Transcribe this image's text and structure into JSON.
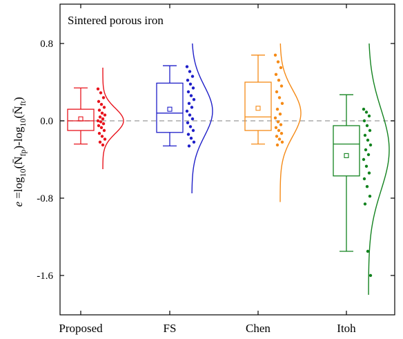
{
  "chart_data": {
    "type": "box",
    "title": "Sintered porous iron",
    "ylabel": "e =log10(N̄fp)-log10(N̄ft)",
    "ylabel_parts": {
      "e": "e",
      "eq": " =log",
      "sub1": "10",
      "lp1": "(",
      "n1": "N̄",
      "sub_fp": "fp",
      "mid": ")-log",
      "sub2": "10",
      "lp2": "(",
      "n2": "N̄",
      "sub_ft": "ft",
      "rp": ")"
    },
    "ylim": [
      -1.9,
      1.15
    ],
    "yticks": [
      0.8,
      0.0,
      -0.8,
      -1.6
    ],
    "ytick_labels": [
      "0.8",
      "0.0",
      "-0.8",
      "-1.6"
    ],
    "reference_line": 0.0,
    "grid": false,
    "categories": [
      "Proposed",
      "FS",
      "Chen",
      "Itoh"
    ],
    "series": [
      {
        "name": "Proposed",
        "color": "#e8131c",
        "box": {
          "whisker_low": -0.24,
          "q1": -0.1,
          "median": 0.0,
          "q3": 0.12,
          "whisker_high": 0.34,
          "mean": 0.02
        },
        "points": [
          0.33,
          0.29,
          0.24,
          0.2,
          0.17,
          0.14,
          0.11,
          0.08,
          0.06,
          0.04,
          0.02,
          0.0,
          -0.01,
          -0.03,
          -0.05,
          -0.07,
          -0.1,
          -0.13,
          -0.16,
          -0.19,
          -0.22,
          -0.25
        ],
        "curve": {
          "mean": 0.0,
          "sd": 0.13,
          "top": 0.55,
          "bottom": -0.5
        }
      },
      {
        "name": "FS",
        "color": "#1e1ec8",
        "box": {
          "whisker_low": -0.26,
          "q1": -0.12,
          "median": 0.08,
          "q3": 0.39,
          "whisker_high": 0.57,
          "mean": 0.12
        },
        "points": [
          0.56,
          0.51,
          0.46,
          0.42,
          0.38,
          0.34,
          0.3,
          0.26,
          0.22,
          0.18,
          0.14,
          0.1,
          0.06,
          0.02,
          -0.02,
          -0.06,
          -0.1,
          -0.14,
          -0.18,
          -0.22,
          -0.26
        ],
        "curve": {
          "mean": 0.1,
          "sd": 0.26,
          "top": 0.8,
          "bottom": -0.75
        }
      },
      {
        "name": "Chen",
        "color": "#f58a16",
        "box": {
          "whisker_low": -0.24,
          "q1": -0.1,
          "median": 0.04,
          "q3": 0.4,
          "whisker_high": 0.68,
          "mean": 0.13
        },
        "points": [
          0.68,
          0.61,
          0.55,
          0.48,
          0.42,
          0.36,
          0.3,
          0.24,
          0.18,
          0.12,
          0.07,
          0.03,
          -0.01,
          -0.04,
          -0.07,
          -0.1,
          -0.13,
          -0.16,
          -0.19,
          -0.22,
          -0.25
        ],
        "curve": {
          "mean": 0.08,
          "sd": 0.24,
          "top": 0.8,
          "bottom": -0.84
        }
      },
      {
        "name": "Itoh",
        "color": "#12821e",
        "box": {
          "whisker_low": -1.35,
          "q1": -0.57,
          "median": -0.24,
          "q3": -0.05,
          "whisker_high": 0.27,
          "mean": -0.36
        },
        "points": [
          0.12,
          0.09,
          0.05,
          0.0,
          -0.05,
          -0.1,
          -0.15,
          -0.2,
          -0.25,
          -0.3,
          -0.35,
          -0.4,
          -0.47,
          -0.54,
          -0.6,
          -0.68,
          -0.78,
          -0.86,
          -1.35,
          -1.6
        ],
        "curve": {
          "mean": -0.3,
          "sd": 0.42,
          "top": 0.8,
          "bottom": -1.8
        }
      }
    ]
  }
}
